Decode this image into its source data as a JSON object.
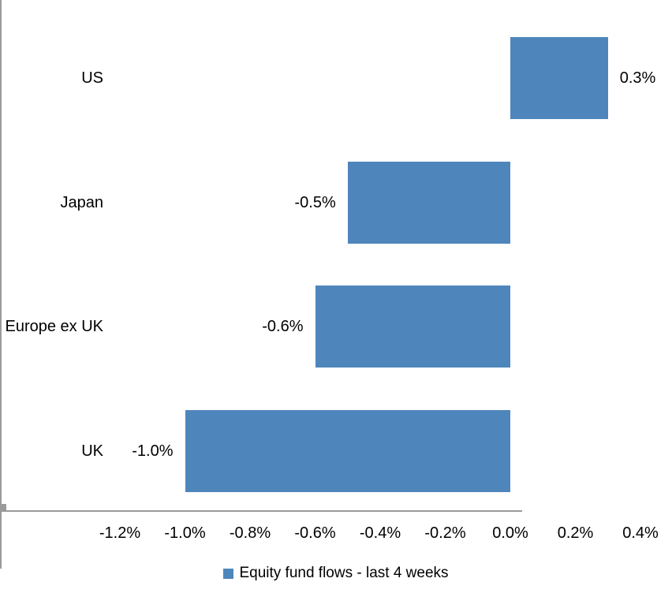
{
  "chart_data": {
    "type": "bar",
    "orientation": "horizontal",
    "title": "",
    "xlabel": "",
    "ylabel": "",
    "grid": false,
    "categories": [
      "US",
      "Japan",
      "Europe ex UK",
      "UK"
    ],
    "series": [
      {
        "name": "Equity fund flows - last 4 weeks",
        "values": [
          0.3,
          -0.5,
          -0.6,
          -1.0
        ],
        "data_labels": [
          "0.3%",
          "-0.5%",
          "-0.6%",
          "-1.0%"
        ]
      }
    ],
    "x_axis": {
      "min": -1.2,
      "max": 0.4,
      "tick_values": [
        -1.2,
        -1.0,
        -0.8,
        -0.6,
        -0.4,
        -0.2,
        0.0,
        0.2,
        0.4
      ],
      "tick_labels": [
        "-1.2%",
        "-1.0%",
        "-0.8%",
        "-0.6%",
        "-0.4%",
        "-0.2%",
        "0.0%",
        "0.2%",
        "0.4%"
      ],
      "format": "percent"
    },
    "legend": {
      "position": "bottom",
      "entries": [
        {
          "label": "Equity fund flows - last 4 weeks",
          "marker": "square"
        }
      ]
    },
    "colors": {
      "bar": "#4E86BC",
      "axis": "#9A9A9A",
      "text": "#000000",
      "background": "#FFFFFF"
    }
  }
}
